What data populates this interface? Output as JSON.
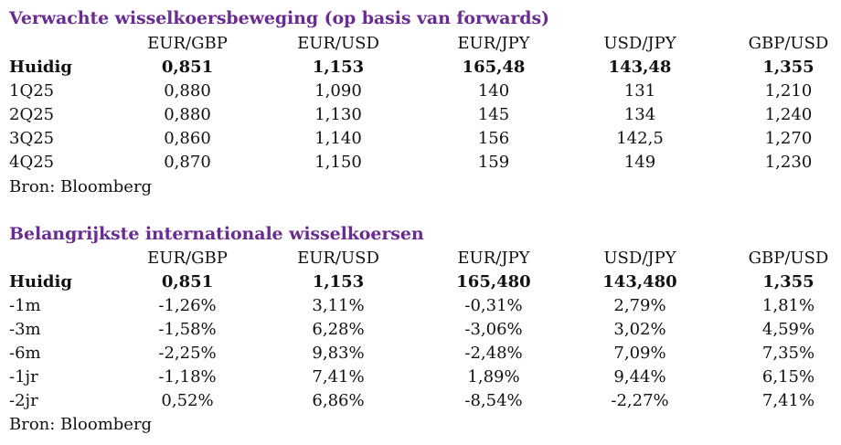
{
  "section1": {
    "title": "Verwachte wisselkoersbeweging (op basis van forwards)",
    "columns": [
      "EUR/GBP",
      "EUR/USD",
      "EUR/JPY",
      "USD/JPY",
      "GBP/USD"
    ],
    "rows": [
      {
        "label": "Huidig",
        "values": [
          "0,851",
          "1,153",
          "165,48",
          "143,48",
          "1,355"
        ]
      },
      {
        "label": "1Q25",
        "values": [
          "0,880",
          "1,090",
          "140",
          "131",
          "1,210"
        ]
      },
      {
        "label": "2Q25",
        "values": [
          "0,880",
          "1,130",
          "145",
          "134",
          "1,240"
        ]
      },
      {
        "label": "3Q25",
        "values": [
          "0,860",
          "1,140",
          "156",
          "142,5",
          "1,270"
        ]
      },
      {
        "label": "4Q25",
        "values": [
          "0,870",
          "1,150",
          "159",
          "149",
          "1,230"
        ]
      }
    ],
    "source": "Bron: Bloomberg"
  },
  "section2": {
    "title": "Belangrijkste internationale wisselkoersen",
    "columns": [
      "EUR/GBP",
      "EUR/USD",
      "EUR/JPY",
      "USD/JPY",
      "GBP/USD"
    ],
    "rows": [
      {
        "label": "Huidig",
        "values": [
          "0,851",
          "1,153",
          "165,480",
          "143,480",
          "1,355"
        ]
      },
      {
        "label": "-1m",
        "values": [
          "-1,26%",
          "3,11%",
          "-0,31%",
          "2,79%",
          "1,81%"
        ]
      },
      {
        "label": "-3m",
        "values": [
          "-1,58%",
          "6,28%",
          "-3,06%",
          "3,02%",
          "4,59%"
        ]
      },
      {
        "label": "-6m",
        "values": [
          "-2,25%",
          "9,83%",
          "-2,48%",
          "7,09%",
          "7,35%"
        ]
      },
      {
        "label": "-1jr",
        "values": [
          "-1,18%",
          "7,41%",
          "1,89%",
          "9,44%",
          "6,15%"
        ]
      },
      {
        "label": "-2jr",
        "values": [
          "0,52%",
          "6,86%",
          "-8,54%",
          "-2,27%",
          "7,41%"
        ]
      }
    ],
    "source": "Bron: Bloomberg"
  },
  "colors": {
    "title": "#6a2c91",
    "text": "#111111",
    "background": "#ffffff"
  }
}
